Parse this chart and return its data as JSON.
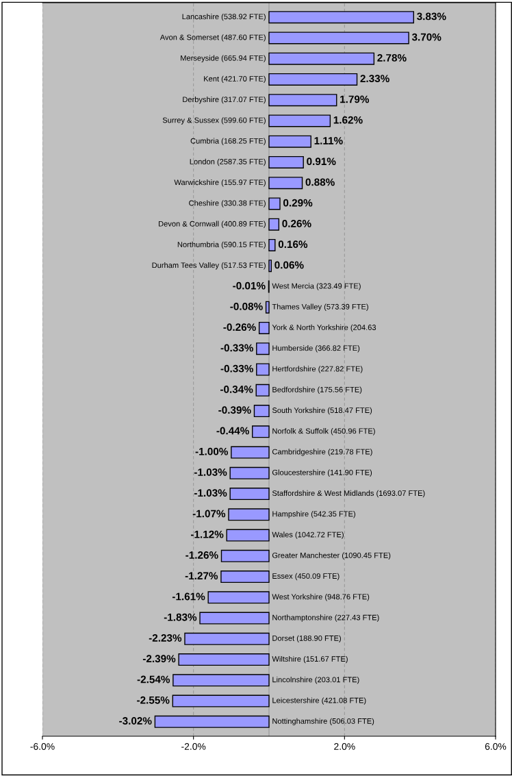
{
  "chart_data": {
    "type": "bar",
    "orientation": "horizontal",
    "categories": [
      "Lancashire (538.92 FTE)",
      "Avon & Somerset (487.60 FTE)",
      "Merseyside (665.94 FTE)",
      "Kent (421.70 FTE)",
      "Derbyshire (317.07 FTE)",
      "Surrey & Sussex (599.60 FTE)",
      "Cumbria (168.25 FTE)",
      "London (2587.35 FTE)",
      "Warwickshire (155.97 FTE)",
      "Cheshire (330.38 FTE)",
      "Devon & Cornwall (400.89 FTE)",
      "Northumbria (590.15 FTE)",
      "Durham Tees Valley (517.53 FTE)",
      "West Mercia (323.49 FTE)",
      "Thames Valley (573.39 FTE)",
      "York & North Yorkshire (204.63",
      "Humberside (366.82 FTE)",
      "Hertfordshire (227.82 FTE)",
      "Bedfordshire (175.56 FTE)",
      "South Yorkshire (518.47 FTE)",
      "Norfolk & Suffolk (450.96 FTE)",
      "Cambridgeshire (219.78 FTE)",
      "Gloucestershire (141.90 FTE)",
      "Staffordshire & West Midlands (1693.07 FTE)",
      "Hampshire (542.35 FTE)",
      "Wales (1042.72 FTE)",
      "Greater Manchester (1090.45 FTE)",
      "Essex (450.09 FTE)",
      "West Yorkshire (948.76 FTE)",
      "Northamptonshire (227.43 FTE)",
      "Dorset (188.90 FTE)",
      "Wiltshire (151.67 FTE)",
      "Lincolnshire (203.01 FTE)",
      "Leicestershire (421.08 FTE)",
      "Nottinghamshire (506.03 FTE)"
    ],
    "values": [
      3.83,
      3.7,
      2.78,
      2.33,
      1.79,
      1.62,
      1.11,
      0.91,
      0.88,
      0.29,
      0.26,
      0.16,
      0.06,
      -0.01,
      -0.08,
      -0.26,
      -0.33,
      -0.33,
      -0.34,
      -0.39,
      -0.44,
      -1.0,
      -1.03,
      -1.03,
      -1.07,
      -1.12,
      -1.26,
      -1.27,
      -1.61,
      -1.83,
      -2.23,
      -2.39,
      -2.54,
      -2.55,
      -3.02
    ],
    "value_labels": [
      "3.83%",
      "3.70%",
      "2.78%",
      "2.33%",
      "1.79%",
      "1.62%",
      "1.11%",
      "0.91%",
      "0.88%",
      "0.29%",
      "0.26%",
      "0.16%",
      "0.06%",
      "-0.01%",
      "-0.08%",
      "-0.26%",
      "-0.33%",
      "-0.33%",
      "-0.34%",
      "-0.39%",
      "-0.44%",
      "-1.00%",
      "-1.03%",
      "-1.03%",
      "-1.07%",
      "-1.12%",
      "-1.26%",
      "-1.27%",
      "-1.61%",
      "-1.83%",
      "-2.23%",
      "-2.39%",
      "-2.54%",
      "-2.55%",
      "-3.02%"
    ],
    "color": "#9999ff",
    "xlim": [
      -6,
      6
    ],
    "xticks": [
      {
        "value": -6,
        "label": "-6.0%"
      },
      {
        "value": -2,
        "label": "-2.0%"
      },
      {
        "value": 2,
        "label": "2.0%"
      },
      {
        "value": 6,
        "label": "6.0%"
      }
    ],
    "grid": "x",
    "legend": false
  }
}
